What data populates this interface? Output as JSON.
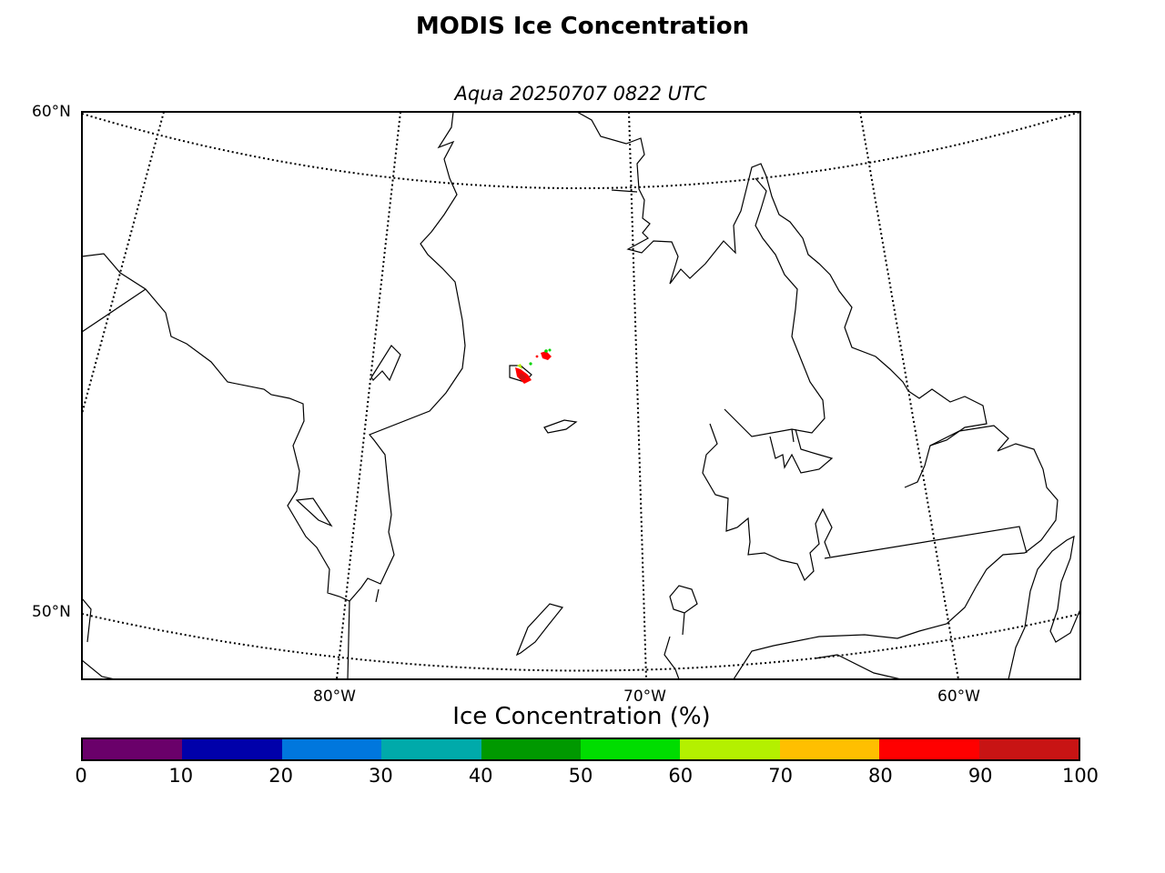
{
  "title": "MODIS Ice Concentration",
  "subtitle": "Aqua 20250707 0822 UTC",
  "map": {
    "lat_labels": [
      "60°N",
      "50°N"
    ],
    "lon_labels": [
      "80°W",
      "70°W",
      "60°W"
    ],
    "gridline_style": "dotted",
    "ice_patch_colors": [
      "#ff0000",
      "#cc1111",
      "#00d400",
      "#b4f000"
    ]
  },
  "colorbar": {
    "label": "Ice Concentration (%)",
    "ticks": [
      "0",
      "10",
      "20",
      "30",
      "40",
      "50",
      "60",
      "70",
      "80",
      "90",
      "100"
    ],
    "colors": [
      "#6a006a",
      "#0000aa",
      "#0077dd",
      "#00aaaa",
      "#009900",
      "#00dd00",
      "#b4f000",
      "#ffbf00",
      "#ff0000",
      "#c81414"
    ]
  }
}
